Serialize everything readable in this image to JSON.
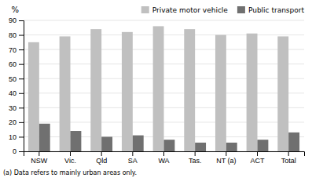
{
  "chart_data": {
    "type": "bar",
    "categories": [
      "NSW",
      "Vic.",
      "Qld",
      "SA",
      "WA",
      "Tas.",
      "NT (a)",
      "ACT",
      "Total"
    ],
    "series": [
      {
        "name": "Private motor vehicle",
        "color": "#c0c0c0",
        "values": [
          75,
          79,
          84,
          82,
          86,
          84,
          80,
          81,
          79
        ]
      },
      {
        "name": "Public transport",
        "color": "#707070",
        "values": [
          19,
          14,
          10,
          11,
          8,
          6,
          6,
          8,
          13
        ]
      }
    ],
    "y_label": "%",
    "ylim": [
      0,
      90
    ],
    "yticks": [
      0,
      10,
      20,
      30,
      40,
      50,
      60,
      70,
      80,
      90
    ],
    "grid": true,
    "legend": "upper right",
    "footnote": "(a) Data refers to mainly urban areas only."
  }
}
